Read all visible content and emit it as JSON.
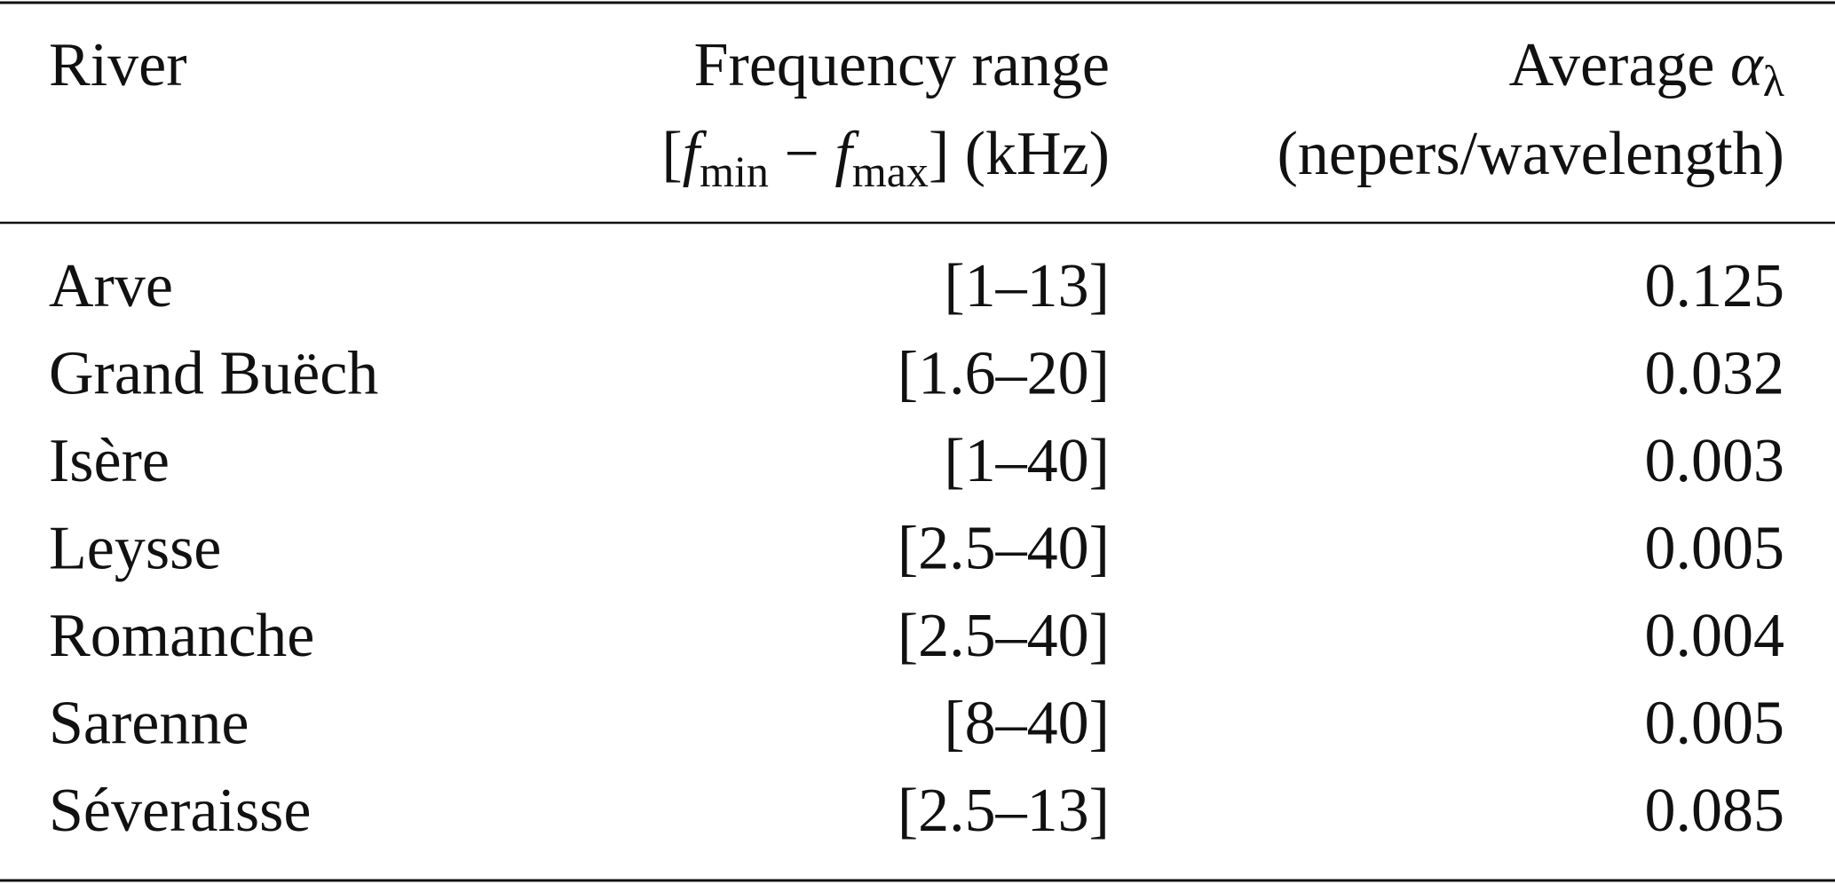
{
  "table": {
    "header": {
      "river": "River",
      "frequency": {
        "line1": "Frequency range",
        "line2": [
          "[",
          "f",
          "min",
          " − ",
          "f",
          "max",
          "] (kHz)"
        ]
      },
      "alpha": {
        "line1": [
          "Average ",
          "α",
          "λ"
        ],
        "line2": "(nepers/wavelength)"
      }
    },
    "rows": [
      [
        "Arve",
        "[1–13]",
        "0.125"
      ],
      [
        "Grand Buëch",
        "[1.6–20]",
        "0.032"
      ],
      [
        "Isère",
        "[1–40]",
        "0.003"
      ],
      [
        "Leysse",
        "[2.5–40]",
        "0.005"
      ],
      [
        "Romanche",
        "[2.5–40]",
        "0.004"
      ],
      [
        "Sarenne",
        "[8–40]",
        "0.005"
      ],
      [
        "Séveraisse",
        "[2.5–13]",
        "0.085"
      ]
    ]
  }
}
